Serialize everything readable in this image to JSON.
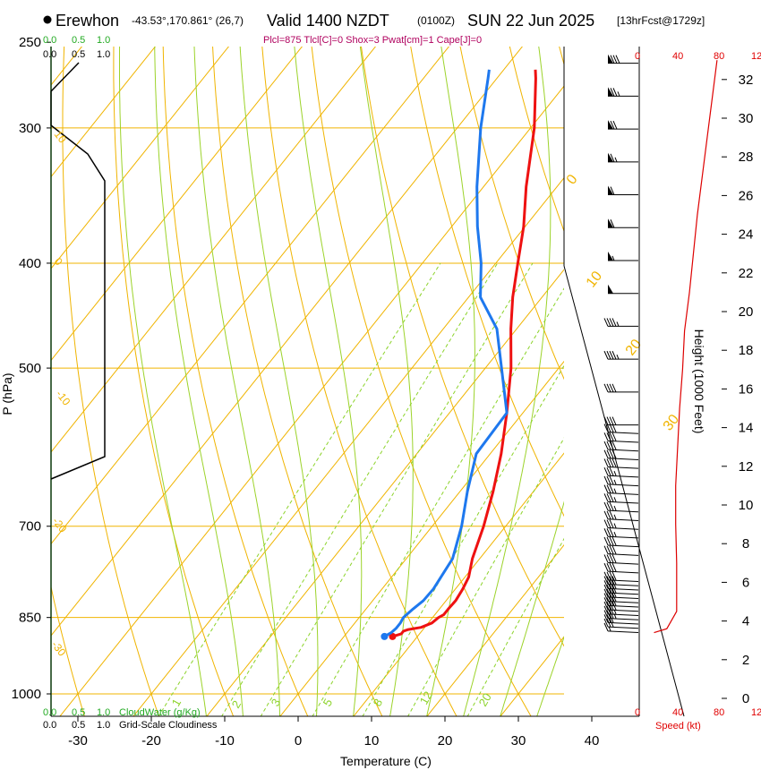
{
  "header": {
    "station": "Erewhon",
    "location": "-43.53°,170.861° (26,7)",
    "valid": "Valid 1400 NZDT",
    "utc": "(0100Z)",
    "date": "SUN 22 Jun 2025",
    "forecast": "[13hrFcst@1729z]",
    "params": "Plcl=875 Tlcl[C]=0 Shox=3 Pwat[cm]=1 Cape[J]=0"
  },
  "colors": {
    "isotherm": "#f0b400",
    "dry_adiabat": "#f0b400",
    "moist_adiabat": "#9cd32a",
    "mixing_ratio": "#8cd32a",
    "temperature": "#ee1111",
    "dewpoint": "#1e78ee",
    "cloud_water": "#22aa22",
    "cloudiness": "#000000",
    "wind_speed": "#dd0000",
    "params": "#b0005e"
  },
  "cloud_scale": {
    "water_ticks": [
      "0.0",
      "0.5",
      "1.0"
    ],
    "water_label": "CloudWater (g/Kg)",
    "cloudiness_ticks": [
      "0.0",
      "0.5",
      "1.0"
    ],
    "cloudiness_label": "Grid-Scale Cloudiness"
  },
  "speed_scale": {
    "ticks": [
      "0",
      "40",
      "80",
      "12"
    ],
    "label": "Speed (kt)"
  },
  "chart_data": {
    "type": "skew-t",
    "xlabel": "Temperature (C)",
    "ylabel": "P (hPa)",
    "y2label": "Height (1000 Feet)",
    "x_ticks": [
      -30,
      -20,
      -10,
      0,
      10,
      20,
      30,
      40
    ],
    "xlim": [
      -35,
      45
    ],
    "p_ticks": [
      250,
      300,
      400,
      500,
      700,
      850,
      1000
    ],
    "plim": [
      250,
      1050
    ],
    "height_ticks_kft": [
      0,
      2,
      4,
      6,
      8,
      10,
      12,
      14,
      16,
      18,
      20,
      22,
      24,
      26,
      28,
      30,
      32
    ],
    "isotherm_labels": [
      "0",
      "10",
      "20",
      "30"
    ],
    "dry_adiabat_labels": [
      "10",
      "0",
      "-10",
      "-20",
      "-30"
    ],
    "mixing_ratio_labels": [
      "1",
      "2",
      "3",
      "5",
      "8",
      "12",
      "20"
    ],
    "series": [
      {
        "name": "Temperature",
        "p": [
          885,
          880,
          875,
          872,
          868,
          860,
          850,
          845,
          835,
          820,
          800,
          780,
          750,
          700,
          650,
          600,
          550,
          500,
          460,
          430,
          400,
          370,
          340,
          300,
          270,
          265
        ],
        "temp": [
          6.6,
          7.5,
          7.5,
          8.0,
          9.5,
          10.5,
          10.8,
          11.2,
          11.2,
          11.3,
          11.0,
          10.5,
          9.0,
          7.0,
          4.5,
          1.5,
          -2.2,
          -6.5,
          -10.8,
          -14.0,
          -17.0,
          -20.2,
          -24.2,
          -29.5,
          -34.7,
          -35.7
        ]
      },
      {
        "name": "Dewpoint",
        "p": [
          885,
          878,
          870,
          860,
          850,
          835,
          820,
          800,
          750,
          700,
          650,
          600,
          550,
          500,
          460,
          430,
          400,
          370,
          340,
          300,
          270,
          265
        ],
        "temp": [
          5.5,
          6.0,
          6.2,
          6.2,
          6.0,
          6.4,
          6.9,
          7.0,
          6.3,
          4.0,
          1.0,
          -1.9,
          -2.2,
          -7.8,
          -12.7,
          -18.4,
          -22.0,
          -26.5,
          -30.9,
          -36.8,
          -41.2,
          -42.0
        ]
      }
    ],
    "wind_speed_profile": {
      "height_kft": [
        3.4,
        3.6,
        4.5,
        5.5,
        7,
        9,
        11,
        13,
        15,
        17,
        19,
        21,
        23,
        25,
        27,
        29,
        31,
        33
      ],
      "speed_kt": [
        15,
        28,
        38,
        38,
        38,
        37,
        37,
        39,
        41,
        44,
        46,
        51,
        55,
        59,
        64,
        69,
        74,
        79
      ]
    }
  }
}
